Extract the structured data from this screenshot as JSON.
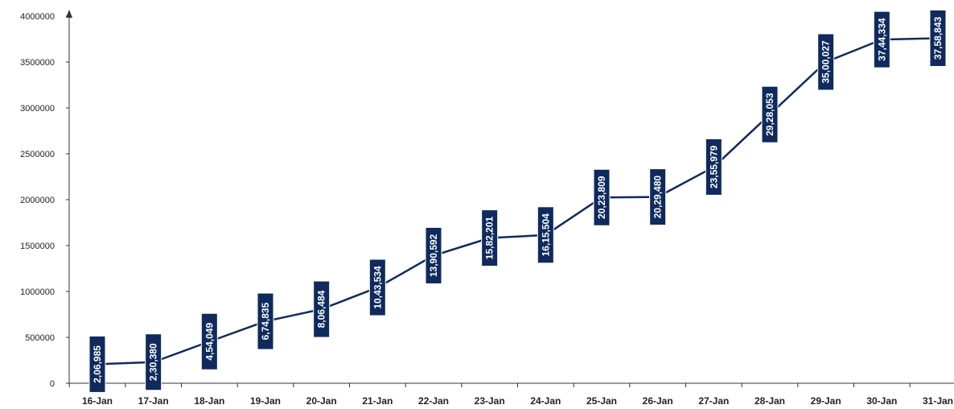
{
  "chart_data": {
    "type": "line",
    "title": "",
    "xlabel": "",
    "ylabel": "",
    "categories": [
      "16-Jan",
      "17-Jan",
      "18-Jan",
      "19-Jan",
      "20-Jan",
      "21-Jan",
      "22-Jan",
      "23-Jan",
      "24-Jan",
      "25-Jan",
      "26-Jan",
      "27-Jan",
      "28-Jan",
      "29-Jan",
      "30-Jan",
      "31-Jan"
    ],
    "values": [
      206985,
      230380,
      454049,
      674835,
      806484,
      1043534,
      1390592,
      1582201,
      1615504,
      2023809,
      2029480,
      2355979,
      2928053,
      3500027,
      3744334,
      3758843
    ],
    "data_labels": [
      "2,06,985",
      "2,30,380",
      "4,54,049",
      "6,74,835",
      "8,06,484",
      "10,43,534",
      "13,90,592",
      "15,82,201",
      "16,15,504",
      "20,23,809",
      "20,29,480",
      "23,55,979",
      "29,28,053",
      "35,00,027",
      "37,44,334",
      "37,58,843"
    ],
    "yticks": [
      "0",
      "500000",
      "1000000",
      "1500000",
      "2000000",
      "2500000",
      "3000000",
      "3500000",
      "4000000"
    ],
    "ylim": [
      0,
      4000000
    ],
    "grid": false,
    "legend": "none",
    "colors": {
      "line": "#0f2a5c",
      "label_bg": "#0f2a5c",
      "label_text": "#ffffff",
      "axis": "#333333"
    }
  }
}
